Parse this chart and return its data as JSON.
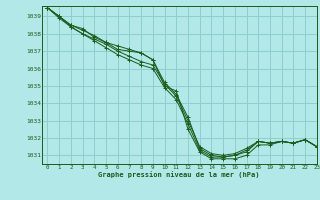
{
  "title": "Graphe pression niveau de la mer (hPa)",
  "bg_color": "#b3e8e8",
  "grid_color": "#8ecece",
  "line_color": "#1a5c1a",
  "xlim": [
    -0.5,
    23
  ],
  "ylim": [
    1030.5,
    1039.6
  ],
  "yticks": [
    1031,
    1032,
    1033,
    1034,
    1035,
    1036,
    1037,
    1038,
    1039
  ],
  "xticks": [
    0,
    1,
    2,
    3,
    4,
    5,
    6,
    7,
    8,
    9,
    10,
    11,
    12,
    13,
    14,
    15,
    16,
    17,
    18,
    19,
    20,
    21,
    22,
    23
  ],
  "lines": [
    [
      1039.5,
      1039.0,
      1038.5,
      1038.3,
      1037.8,
      1037.5,
      1037.1,
      1037.0,
      1036.9,
      1036.5,
      1035.0,
      1034.7,
      1032.5,
      1031.2,
      1030.8,
      1030.8,
      1030.8,
      1031.0,
      1031.6,
      1031.6,
      1031.8,
      1031.7,
      1031.9,
      1031.5
    ],
    [
      1039.5,
      1039.0,
      1038.5,
      1038.2,
      1037.9,
      1037.5,
      1037.3,
      1037.1,
      1036.9,
      1036.5,
      1035.2,
      1034.5,
      1033.2,
      1031.4,
      1031.0,
      1030.9,
      1031.0,
      1031.2,
      1031.8,
      1031.7,
      1031.8,
      1031.7,
      1031.9,
      1031.5
    ],
    [
      1039.5,
      1039.0,
      1038.4,
      1038.0,
      1037.6,
      1037.2,
      1036.8,
      1036.5,
      1036.2,
      1036.0,
      1034.9,
      1034.2,
      1032.8,
      1031.3,
      1030.9,
      1030.9,
      1031.0,
      1031.3,
      1031.8,
      1031.7,
      1031.8,
      1031.7,
      1031.9,
      1031.5
    ],
    [
      1039.5,
      1038.9,
      1038.4,
      1038.0,
      1037.7,
      1037.4,
      1037.0,
      1036.7,
      1036.4,
      1036.2,
      1035.1,
      1034.4,
      1033.0,
      1031.5,
      1031.1,
      1031.0,
      1031.1,
      1031.4,
      1031.8,
      1031.7,
      1031.8,
      1031.7,
      1031.9,
      1031.5
    ]
  ]
}
